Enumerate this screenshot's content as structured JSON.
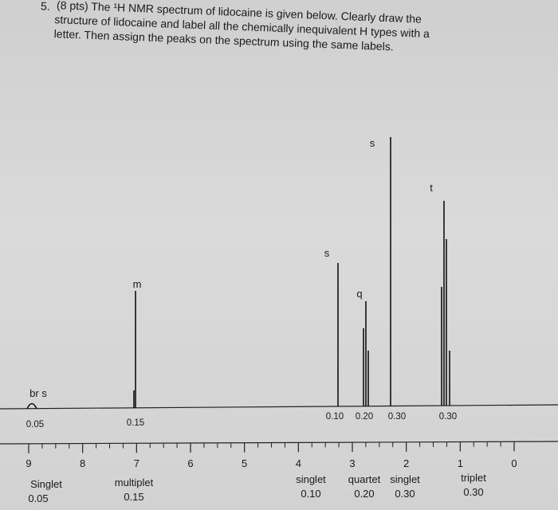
{
  "question": {
    "number": "5.",
    "lines": [
      "(8 pts) The ¹H NMR spectrum of lidocaine is given below. Clearly draw the",
      "structure of lidocaine and label all the chemically inequivalent H types with a",
      "letter. Then assign the peaks on the spectrum using the same labels."
    ]
  },
  "spectrum": {
    "peak_labels": [
      "br s",
      "m",
      "s",
      "q",
      "s",
      "t"
    ],
    "integrations": [
      "0.05",
      "0.15",
      "0.10",
      "0.20",
      "0.30",
      "0.30"
    ],
    "axis_labels": [
      "9",
      "8",
      "7",
      "6",
      "5",
      "4",
      "3",
      "2",
      "1",
      "0"
    ]
  },
  "annotations": [
    {
      "multiplicity": "Singlet",
      "integration": "0.05"
    },
    {
      "multiplicity": "multiplet",
      "integration": "0.15"
    },
    {
      "multiplicity": "singlet",
      "integration": "0.10"
    },
    {
      "multiplicity": "quartet",
      "integration": "0.20"
    },
    {
      "multiplicity": "singlet",
      "integration": "0.30"
    },
    {
      "multiplicity": "triplet",
      "integration": "0.30"
    }
  ]
}
